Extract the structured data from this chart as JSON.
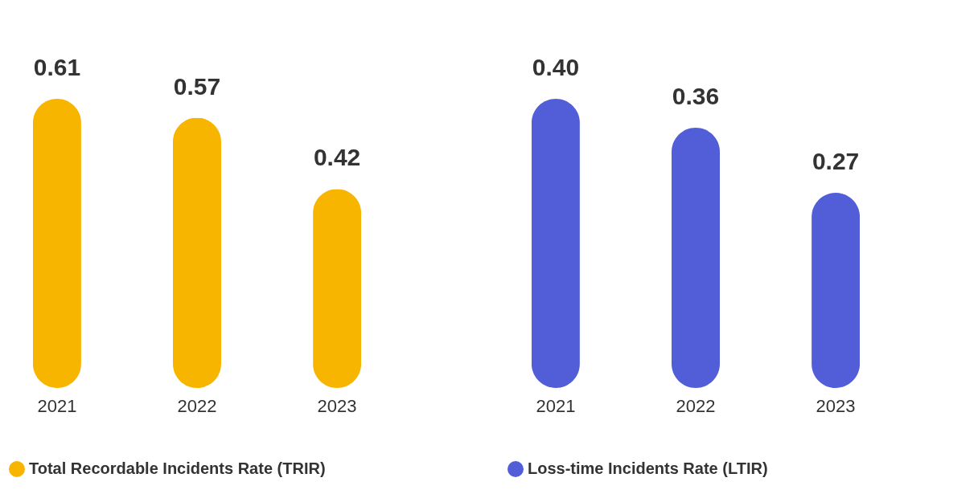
{
  "chart_data": [
    {
      "type": "bar",
      "categories": [
        "2021",
        "2022",
        "2023"
      ],
      "series": [
        {
          "name": "Total Recordable Incidents Rate (TRIR)",
          "color": "#f7b500",
          "values": [
            0.61,
            0.57,
            0.42
          ],
          "value_labels": [
            "0.61",
            "0.57",
            "0.42"
          ]
        }
      ],
      "legend": "bottom left",
      "grid": false
    },
    {
      "type": "bar",
      "categories": [
        "2021",
        "2022",
        "2023"
      ],
      "series": [
        {
          "name": "Loss-time Incidents Rate (LTIR)",
          "color": "#525ed8",
          "values": [
            0.4,
            0.36,
            0.27
          ],
          "value_labels": [
            "0.40",
            "0.36",
            "0.27"
          ]
        }
      ],
      "legend": "bottom left",
      "grid": false
    }
  ]
}
